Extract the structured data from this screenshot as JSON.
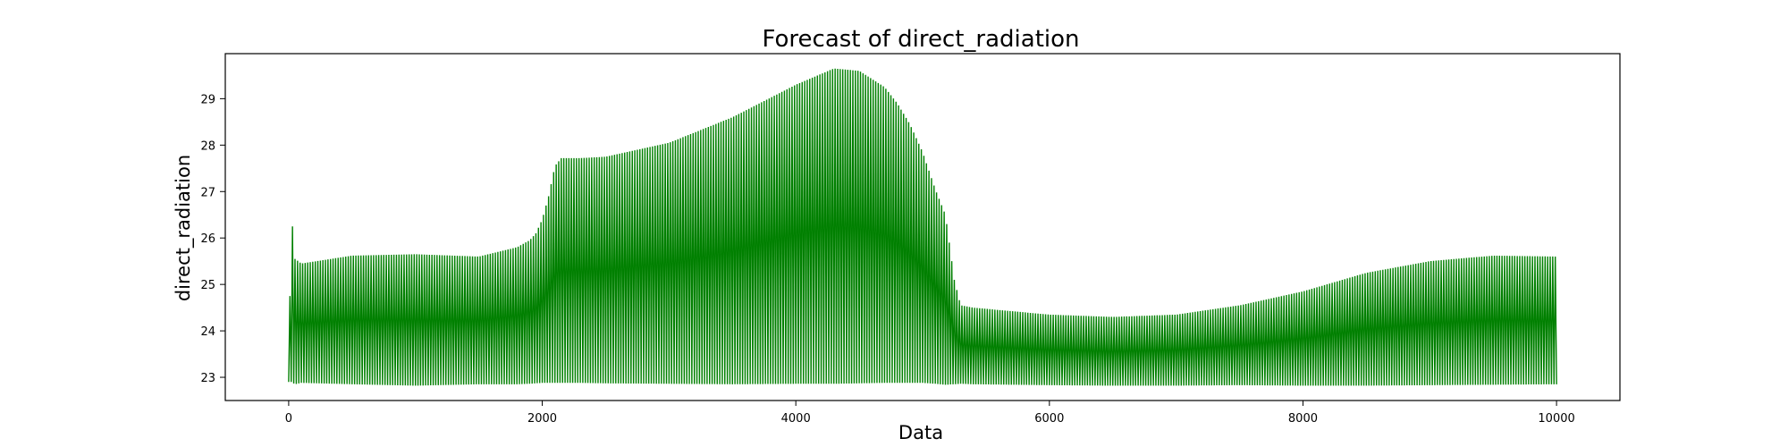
{
  "chart_data": {
    "type": "line",
    "title": "Forecast of direct_radiation",
    "xlabel": "Data",
    "ylabel": "direct_radiation",
    "xlim": [
      -500,
      10500
    ],
    "ylim": [
      22.5,
      29.97
    ],
    "xticks": [
      0,
      2000,
      4000,
      6000,
      8000,
      10000
    ],
    "yticks": [
      23,
      24,
      25,
      26,
      27,
      28,
      29
    ],
    "grid": false,
    "color": "#008000",
    "series": [
      {
        "x": [
          0,
          20,
          50,
          100,
          500,
          1000,
          1500,
          1800,
          1900,
          1950,
          2000,
          2050,
          2100,
          2150,
          2300,
          2500,
          3000,
          3500,
          4000,
          4300,
          4500,
          4700,
          4800,
          4900,
          5000,
          5100,
          5180,
          5250,
          5300,
          5400,
          6000,
          6500,
          7000,
          7500,
          8000,
          8500,
          9000,
          9500,
          10000
        ],
        "upper": [
          22.9,
          26.6,
          25.55,
          25.45,
          25.62,
          25.65,
          25.6,
          25.8,
          25.95,
          26.1,
          26.4,
          26.9,
          27.55,
          27.72,
          27.72,
          27.75,
          28.05,
          28.6,
          29.3,
          29.65,
          29.6,
          29.25,
          28.9,
          28.45,
          27.85,
          27.05,
          26.5,
          25.1,
          24.55,
          24.5,
          24.35,
          24.3,
          24.35,
          24.55,
          24.85,
          25.25,
          25.5,
          25.62,
          25.6
        ],
        "lower": [
          22.9,
          22.9,
          22.85,
          22.88,
          22.85,
          22.82,
          22.85,
          22.85,
          22.86,
          22.87,
          22.88,
          22.88,
          22.88,
          22.88,
          22.88,
          22.87,
          22.86,
          22.85,
          22.86,
          22.86,
          22.87,
          22.88,
          22.88,
          22.88,
          22.88,
          22.86,
          22.84,
          22.85,
          22.86,
          22.85,
          22.83,
          22.82,
          22.82,
          22.83,
          22.82,
          22.82,
          22.83,
          22.84,
          22.85
        ],
        "period": 20
      }
    ]
  }
}
